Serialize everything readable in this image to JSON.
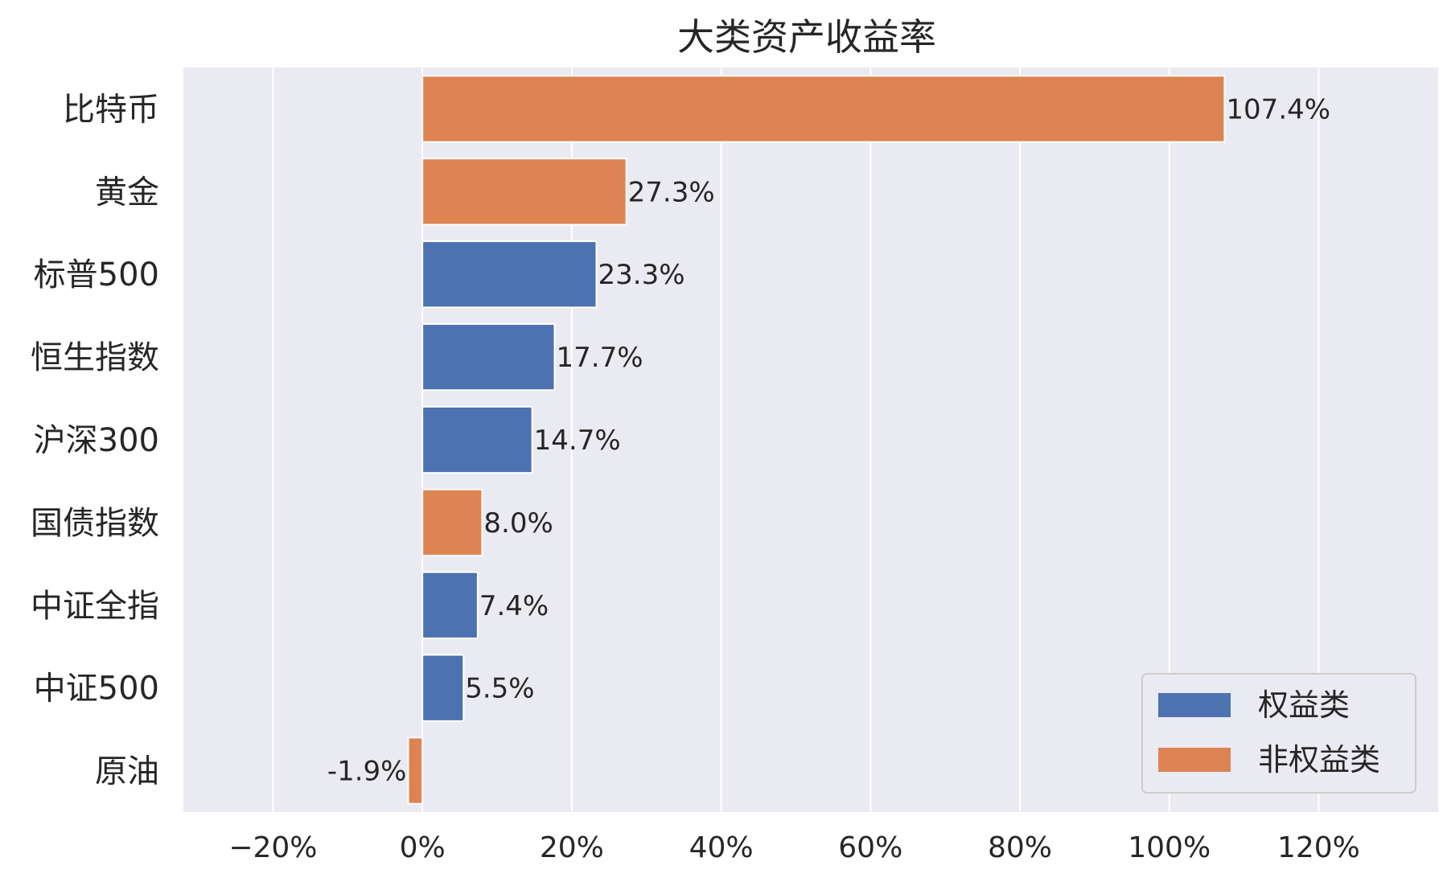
{
  "chart_data": {
    "type": "bar",
    "orientation": "horizontal",
    "title": "大类资产收益率",
    "xlabel": "",
    "ylabel": "",
    "xlim": [
      -32,
      136
    ],
    "xticks": [
      -20,
      0,
      20,
      40,
      60,
      80,
      100,
      120
    ],
    "xtick_labels": [
      "−20%",
      "0%",
      "20%",
      "40%",
      "60%",
      "80%",
      "100%",
      "120%"
    ],
    "grid": true,
    "legend_position": "bottom-right",
    "categories": [
      "比特币",
      "黄金",
      "标普500",
      "恒生指数",
      "沪深300",
      "国债指数",
      "中证全指",
      "中证500",
      "原油"
    ],
    "values": [
      107.4,
      27.3,
      23.3,
      17.7,
      14.7,
      8.0,
      7.4,
      5.5,
      -1.9
    ],
    "value_labels": [
      "107.4%",
      "27.3%",
      "23.3%",
      "17.7%",
      "14.7%",
      "8.0%",
      "7.4%",
      "5.5%",
      "-1.9%"
    ],
    "groups": [
      "非权益类",
      "非权益类",
      "权益类",
      "权益类",
      "权益类",
      "非权益类",
      "权益类",
      "权益类",
      "非权益类"
    ],
    "legend": [
      {
        "name": "权益类",
        "color": "#4c72b0"
      },
      {
        "name": "非权益类",
        "color": "#dd8452"
      }
    ],
    "colors": {
      "background": "#eaeaf2",
      "grid": "#ffffff",
      "权益类": "#4c72b0",
      "非权益类": "#dd8452"
    }
  }
}
